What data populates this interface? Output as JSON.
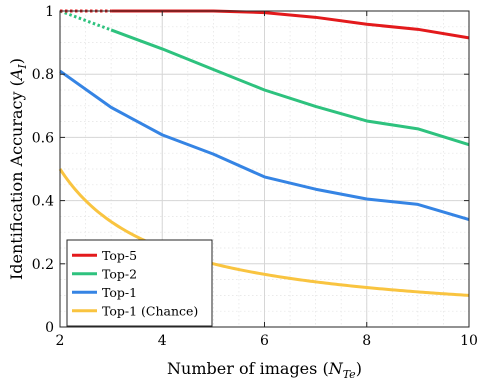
{
  "chart_data": {
    "type": "line",
    "xlabel": {
      "prefix": "Number of images (",
      "var": "N",
      "sub": "Te",
      "suffix": ")"
    },
    "ylabel": {
      "prefix": "Identification Accuracy (",
      "var": "A",
      "sub": "I",
      "suffix": ")"
    },
    "xlim": [
      2,
      10
    ],
    "ylim": [
      0,
      1
    ],
    "xticks": [
      2,
      4,
      6,
      8,
      10
    ],
    "yticks": [
      0,
      0.2,
      0.4,
      0.6,
      0.8,
      1
    ],
    "xtick_labels": [
      "2",
      "4",
      "6",
      "8",
      "10"
    ],
    "ytick_labels": [
      "0",
      "0.2",
      "0.4",
      "0.6",
      "0.8",
      "1"
    ],
    "grid": true,
    "minor_grid": true,
    "legend_position": "bottom-left",
    "x": [
      2,
      3,
      4,
      5,
      6,
      7,
      8,
      9,
      10
    ],
    "series": [
      {
        "name": "Top-5",
        "color": "#e31a1c",
        "values": [
          1.0,
          1.0,
          1.0,
          1.0,
          0.995,
          0.98,
          0.958,
          0.942,
          0.915
        ],
        "dashed_until_x": 3
      },
      {
        "name": "Top-2",
        "color": "#2ec27e",
        "values": [
          1.0,
          0.94,
          0.88,
          0.815,
          0.75,
          0.698,
          0.652,
          0.627,
          0.577
        ],
        "dashed_until_x": 3
      },
      {
        "name": "Top-1",
        "color": "#3584e4",
        "values": [
          0.81,
          0.695,
          0.608,
          0.547,
          0.475,
          0.436,
          0.405,
          0.388,
          0.34
        ],
        "dashed_until_x": null
      },
      {
        "name": "Top-1 (Chance)",
        "color": "#f9c440",
        "values": [
          0.5,
          0.3333,
          0.25,
          0.2,
          0.1667,
          0.1429,
          0.125,
          0.1111,
          0.1
        ],
        "smooth": true,
        "dashed_until_x": null
      }
    ]
  }
}
